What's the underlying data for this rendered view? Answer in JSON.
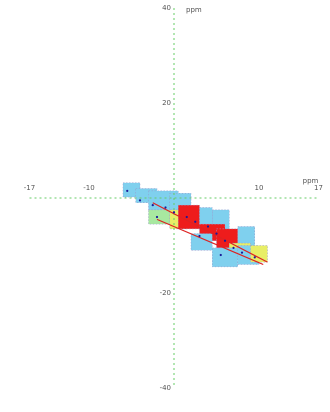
{
  "chart_data": {
    "type": "scatter",
    "title": "",
    "x_axis": {
      "label": "ppm",
      "range": [
        -17,
        17
      ],
      "ticks": [
        -17,
        -10,
        10,
        17
      ],
      "tick_labels": [
        "-17",
        "-10",
        "10",
        "17"
      ]
    },
    "y_axis": {
      "label": "ppm",
      "range": [
        -40,
        40
      ],
      "ticks": [
        40,
        20,
        -20,
        -40
      ],
      "tick_labels": [
        "40",
        "20",
        "-20",
        "-40"
      ]
    },
    "grid": false,
    "axes_style": "dashed green lines through origin",
    "colors": {
      "axis": "#66cc66",
      "blue": "#7fd0ee",
      "yellow": "#e8ee66",
      "red": "#ee1c1c",
      "green": "#a8e8a0",
      "trend": "#dd2222",
      "point": "#1a1a99"
    },
    "cells": [
      {
        "x": -6.0,
        "y": 0.2,
        "w": 2.0,
        "h": 3.0,
        "color": "blue"
      },
      {
        "x": -4.5,
        "y": -1.0,
        "w": 2.5,
        "h": 3.0,
        "color": "blue"
      },
      {
        "x": -3.0,
        "y": -2.5,
        "w": 3.5,
        "h": 4.0,
        "color": "blue"
      },
      {
        "x": -0.5,
        "y": -2.5,
        "w": 2.5,
        "h": 3.5,
        "color": "blue"
      },
      {
        "x": -3.0,
        "y": -5.5,
        "w": 2.5,
        "h": 3.0,
        "color": "green"
      },
      {
        "x": -0.5,
        "y": -6.5,
        "w": 2.0,
        "h": 4.0,
        "color": "yellow"
      },
      {
        "x": 0.5,
        "y": -6.5,
        "w": 2.5,
        "h": 5.0,
        "color": "red"
      },
      {
        "x": 3.0,
        "y": -5.5,
        "w": 1.5,
        "h": 3.5,
        "color": "blue"
      },
      {
        "x": 4.5,
        "y": -6.5,
        "w": 2.0,
        "h": 4.0,
        "color": "blue"
      },
      {
        "x": 3.0,
        "y": -9.0,
        "w": 3.0,
        "h": 3.5,
        "color": "red"
      },
      {
        "x": 2.0,
        "y": -11.0,
        "w": 2.5,
        "h": 3.5,
        "color": "blue"
      },
      {
        "x": 5.0,
        "y": -10.5,
        "w": 2.5,
        "h": 4.0,
        "color": "red"
      },
      {
        "x": 7.5,
        "y": -10.0,
        "w": 2.0,
        "h": 4.0,
        "color": "blue"
      },
      {
        "x": 6.5,
        "y": -13.0,
        "w": 2.5,
        "h": 3.5,
        "color": "yellow"
      },
      {
        "x": 4.5,
        "y": -14.5,
        "w": 3.0,
        "h": 4.0,
        "color": "blue"
      },
      {
        "x": 7.5,
        "y": -14.0,
        "w": 2.5,
        "h": 4.0,
        "color": "blue"
      },
      {
        "x": 9.0,
        "y": -13.5,
        "w": 2.0,
        "h": 3.5,
        "color": "yellow"
      }
    ],
    "trend_lines": [
      {
        "x": [
          -2.5,
          11.0
        ],
        "y": [
          -1.0,
          -13.5
        ]
      },
      {
        "x": [
          -2.0,
          10.5
        ],
        "y": [
          -4.5,
          -14.0
        ]
      }
    ],
    "points": [
      {
        "x": -5.5,
        "y": 1.5
      },
      {
        "x": -4.0,
        "y": -0.5
      },
      {
        "x": -2.5,
        "y": -1.5
      },
      {
        "x": -1.0,
        "y": -2.0
      },
      {
        "x": 0.0,
        "y": -3.0
      },
      {
        "x": 1.5,
        "y": -4.0
      },
      {
        "x": 2.5,
        "y": -5.0
      },
      {
        "x": 4.0,
        "y": -6.0
      },
      {
        "x": 5.0,
        "y": -7.5
      },
      {
        "x": 6.0,
        "y": -9.0
      },
      {
        "x": 7.0,
        "y": -10.5
      },
      {
        "x": 8.0,
        "y": -11.5
      },
      {
        "x": 9.5,
        "y": -12.5
      },
      {
        "x": 3.0,
        "y": -8.0
      },
      {
        "x": 5.5,
        "y": -12.0
      },
      {
        "x": -2.0,
        "y": -4.0
      }
    ]
  }
}
